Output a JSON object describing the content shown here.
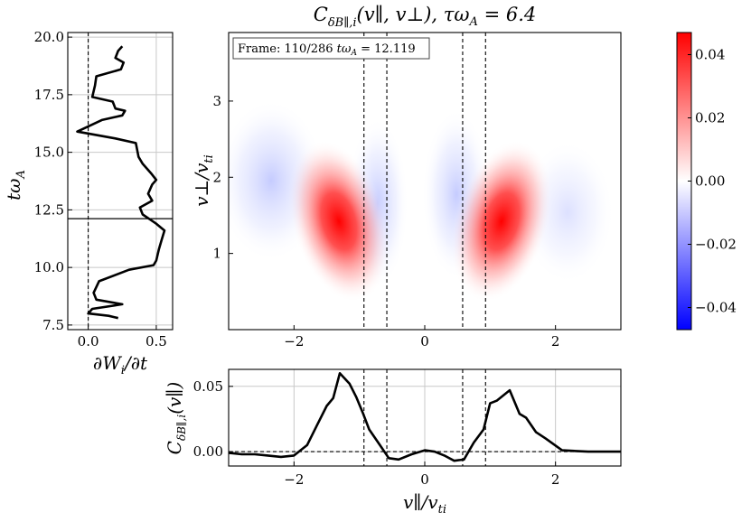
{
  "chart_data": [
    {
      "type": "heatmap",
      "title": "C_{δB∥,i}(v∥, v⊥), τω_A = 6.4",
      "title_parts": {
        "sym": "C",
        "sub": "δB∥,i",
        "args": "(v∥, v⊥), τω",
        "sub2": "A",
        "eq": " = 6.4"
      },
      "xlabel": "v∥/v_ti",
      "xlabel_parts": {
        "num": "v∥",
        "den": "v",
        "den_sub": "ti"
      },
      "ylabel": "v⊥/v_ti",
      "ylabel_parts": {
        "num": "v⊥",
        "den": "v",
        "den_sub": "ti"
      },
      "xlim": [
        -3,
        3
      ],
      "ylim": [
        0,
        3.9
      ],
      "xticks": [
        -2,
        0,
        2
      ],
      "xtick_labels": [
        "−2",
        "0",
        "2"
      ],
      "yticks": [
        1,
        2,
        3
      ],
      "ytick_labels": [
        "1",
        "2",
        "3"
      ],
      "vlines_dashed": [
        -0.93,
        -0.58,
        0.58,
        0.93
      ],
      "frame_label": "Frame: 110/286 tω_A = 12.119",
      "frame_parts": {
        "pre": "Frame: 110/286 ",
        "t": "tω",
        "sub": "A",
        "post": " = 12.119"
      },
      "features": [
        {
          "name": "positive-lobe-left",
          "v_par": -1.2,
          "v_perp": 1.35,
          "peak": 0.046
        },
        {
          "name": "positive-lobe-right",
          "v_par": 1.2,
          "v_perp": 1.35,
          "peak": 0.046
        },
        {
          "name": "negative-lobe-left-outer",
          "v_par": -2.1,
          "v_perp": 1.9,
          "peak": -0.006
        },
        {
          "name": "negative-lobe-left-inner",
          "v_par": -0.6,
          "v_perp": 1.7,
          "peak": -0.004
        },
        {
          "name": "negative-lobe-right-inner",
          "v_par": 0.5,
          "v_perp": 1.9,
          "peak": -0.006
        }
      ]
    },
    {
      "type": "line",
      "name": "energy-transfer-rate",
      "xlabel": "∂W_i/∂t",
      "xlabel_parts": {
        "a": "∂W",
        "sub": "i",
        "b": "/∂t"
      },
      "ylabel": "tω_A",
      "ylabel_parts": {
        "t": "tω",
        "sub": "A"
      },
      "xlim": [
        -0.15,
        0.62
      ],
      "ylim": [
        7.3,
        20.2
      ],
      "xticks": [
        0.0,
        0.5
      ],
      "xtick_labels": [
        "0.0",
        "0.5"
      ],
      "yticks": [
        7.5,
        10.0,
        12.5,
        15.0,
        17.5,
        20.0
      ],
      "ytick_labels": [
        "7.5",
        "10.0",
        "12.5",
        "15.0",
        "17.5",
        "20.0"
      ],
      "vline_dashed_x": 0.0,
      "current_time": 12.119,
      "points": [
        [
          0.25,
          19.6
        ],
        [
          0.22,
          19.4
        ],
        [
          0.2,
          19.1
        ],
        [
          0.26,
          18.9
        ],
        [
          0.24,
          18.6
        ],
        [
          0.06,
          18.3
        ],
        [
          0.05,
          17.9
        ],
        [
          0.03,
          17.4
        ],
        [
          0.18,
          17.2
        ],
        [
          0.2,
          16.9
        ],
        [
          0.27,
          16.8
        ],
        [
          0.25,
          16.6
        ],
        [
          0.1,
          16.4
        ],
        [
          -0.08,
          15.9
        ],
        [
          0.2,
          15.6
        ],
        [
          0.35,
          15.4
        ],
        [
          0.37,
          14.8
        ],
        [
          0.4,
          14.5
        ],
        [
          0.46,
          14.1
        ],
        [
          0.5,
          13.8
        ],
        [
          0.47,
          13.6
        ],
        [
          0.44,
          13.2
        ],
        [
          0.47,
          12.9
        ],
        [
          0.38,
          12.6
        ],
        [
          0.4,
          12.3
        ],
        [
          0.45,
          12.1
        ],
        [
          0.5,
          11.9
        ],
        [
          0.56,
          11.6
        ],
        [
          0.54,
          11.2
        ],
        [
          0.52,
          10.8
        ],
        [
          0.5,
          10.3
        ],
        [
          0.48,
          10.1
        ],
        [
          0.3,
          9.9
        ],
        [
          0.08,
          9.4
        ],
        [
          0.04,
          8.9
        ],
        [
          0.06,
          8.6
        ],
        [
          0.25,
          8.4
        ],
        [
          0.03,
          8.2
        ],
        [
          0.0,
          8.0
        ],
        [
          0.15,
          7.9
        ],
        [
          0.22,
          7.8
        ]
      ]
    },
    {
      "type": "line",
      "name": "reduced-correlation",
      "ylabel": "C_{δB∥,i}(v∥)",
      "ylabel_parts": {
        "sym": "C",
        "sub": "δB∥,i",
        "args": "(v∥)"
      },
      "xlabel": "v∥/v_ti",
      "xlim": [
        -3,
        3
      ],
      "ylim": [
        -0.011,
        0.063
      ],
      "xticks": [
        -2,
        0,
        2
      ],
      "xtick_labels": [
        "−2",
        "0",
        "2"
      ],
      "yticks": [
        0.0,
        0.05
      ],
      "ytick_labels": [
        "0.00",
        "0.05"
      ],
      "hline_dashed_y": 0.0,
      "vlines_dashed": [
        -0.93,
        -0.58,
        0.58,
        0.93
      ],
      "points": [
        [
          -3.0,
          -0.001
        ],
        [
          -2.8,
          -0.002
        ],
        [
          -2.6,
          -0.002
        ],
        [
          -2.4,
          -0.003
        ],
        [
          -2.2,
          -0.004
        ],
        [
          -2.0,
          -0.003
        ],
        [
          -1.8,
          0.005
        ],
        [
          -1.65,
          0.02
        ],
        [
          -1.5,
          0.035
        ],
        [
          -1.4,
          0.041
        ],
        [
          -1.3,
          0.06
        ],
        [
          -1.15,
          0.052
        ],
        [
          -1.05,
          0.042
        ],
        [
          -0.95,
          0.03
        ],
        [
          -0.85,
          0.017
        ],
        [
          -0.7,
          0.006
        ],
        [
          -0.55,
          -0.005
        ],
        [
          -0.4,
          -0.006
        ],
        [
          -0.2,
          -0.002
        ],
        [
          0.0,
          0.001
        ],
        [
          0.15,
          0.0
        ],
        [
          0.3,
          -0.003
        ],
        [
          0.45,
          -0.007
        ],
        [
          0.6,
          -0.006
        ],
        [
          0.75,
          0.007
        ],
        [
          0.9,
          0.017
        ],
        [
          1.0,
          0.037
        ],
        [
          1.1,
          0.039
        ],
        [
          1.3,
          0.047
        ],
        [
          1.45,
          0.029
        ],
        [
          1.55,
          0.026
        ],
        [
          1.7,
          0.015
        ],
        [
          1.85,
          0.01
        ],
        [
          2.1,
          0.001
        ],
        [
          2.5,
          0.0
        ],
        [
          3.0,
          0.0
        ]
      ]
    },
    {
      "type": "colorbar",
      "cmap": "bwr",
      "range": [
        -0.047,
        0.047
      ],
      "ticks": [
        -0.04,
        -0.02,
        0.0,
        0.02,
        0.04
      ],
      "tick_labels": [
        "−0.04",
        "−0.02",
        "0.00",
        "0.02",
        "0.04"
      ]
    }
  ]
}
